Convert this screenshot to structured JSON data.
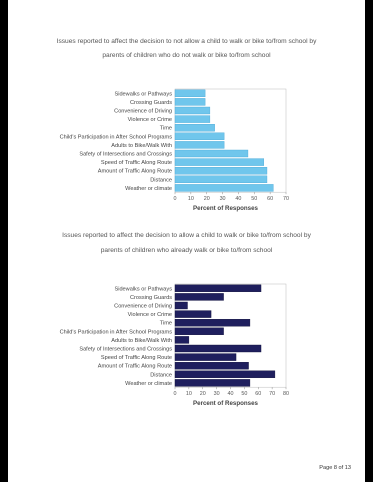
{
  "charts": [
    {
      "title_line1": "Issues reported to affect the decision to not allow a child to walk or bike to/from school by",
      "title_line2": "parents of children who do not walk or bike to/from school"
    },
    {
      "title_line1": "Issues reported to affect the decision to allow a child to walk or bike to/from school by",
      "title_line2": "parents of children who already walk or bike to/from school"
    }
  ],
  "chart_data": [
    {
      "type": "bar",
      "orientation": "horizontal",
      "categories": [
        "Sidewalks or Pathways",
        "Crossing Guards",
        "Convenience of Driving",
        "Violence or Crime",
        "Time",
        "Child's Participation in After School Programs",
        "Adults to Bike/Walk With",
        "Safety of Intersections and Crossings",
        "Speed of Traffic Along Route",
        "Amount of Traffic Along Route",
        "Distance",
        "Weather or climate"
      ],
      "values": [
        19,
        19,
        22,
        22,
        25,
        31,
        31,
        46,
        56,
        58,
        58,
        62
      ],
      "xlabel": "Percent of Responses",
      "ylabel": "",
      "xlim": [
        0,
        70
      ],
      "xticks": [
        "0",
        "10",
        "20",
        "30",
        "40",
        "50",
        "60",
        "70"
      ],
      "bar_color": "#70c6ec",
      "bar_stroke": "#4aa8d8"
    },
    {
      "type": "bar",
      "orientation": "horizontal",
      "categories": [
        "Sidewalks or Pathways",
        "Crossing Guards",
        "Convenience of Driving",
        "Violence or Crime",
        "Time",
        "Child's Participation in After School Programs",
        "Adults to Bike/Walk With",
        "Safety of Intersections and Crossings",
        "Speed of Traffic Along Route",
        "Amount of Traffic Along Route",
        "Distance",
        "Weather or climate"
      ],
      "values": [
        62,
        35,
        9,
        26,
        54,
        35,
        10,
        62,
        44,
        53,
        72,
        54
      ],
      "xlabel": "Percent of Responses",
      "ylabel": "",
      "xlim": [
        0,
        80
      ],
      "xticks": [
        "0",
        "10",
        "20",
        "30",
        "40",
        "50",
        "60",
        "70",
        "80"
      ],
      "bar_color": "#1f1f5e",
      "bar_stroke": "#10103a"
    }
  ],
  "footer": {
    "page_label": "Page 8 of 13"
  }
}
